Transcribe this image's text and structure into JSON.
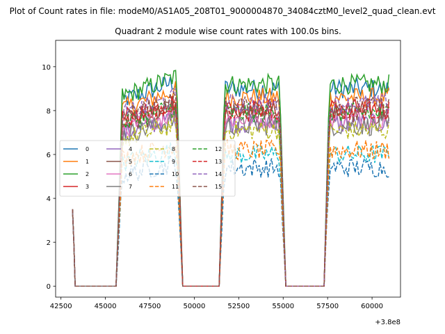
{
  "chart_data": {
    "type": "line",
    "suptitle": "Plot of Count rates in file: modeM0/AS1A05_208T01_9000004870_34084cztM0_level2_quad_clean.evt",
    "title": "Quadrant 2 module wise count rates with 100.0s bins.",
    "xlabel": "",
    "ylabel": "",
    "x_offset_label": "+3.8e8",
    "xlim": [
      42200,
      61600
    ],
    "ylim": [
      -0.5,
      11.2
    ],
    "xticks": [
      42500,
      45000,
      47500,
      50000,
      52500,
      55000,
      57500,
      60000
    ],
    "xtick_labels": [
      "42500",
      "45000",
      "47500",
      "50000",
      "52500",
      "55000",
      "57500",
      "60000"
    ],
    "yticks": [
      0,
      2,
      4,
      6,
      8,
      10
    ],
    "ytick_labels": [
      "0",
      "2",
      "4",
      "6",
      "8",
      "10"
    ],
    "segments": [
      {
        "start": 45650,
        "end": 49350,
        "rise": 300,
        "fall": 350,
        "shape": "rising"
      },
      {
        "start": 51450,
        "end": 55150,
        "rise": 250,
        "fall": 350,
        "shape": "flat"
      },
      {
        "start": 57350,
        "end": 61000,
        "rise": 250,
        "fall": 0,
        "shape": "flat"
      }
    ],
    "initial_spike": {
      "start": 43150,
      "end": 43300,
      "values": [
        3.5,
        2.0,
        0.0
      ]
    },
    "series": [
      {
        "name": "0",
        "level": 9.0,
        "color": "#1f77b4",
        "dash": "solid"
      },
      {
        "name": "1",
        "level": 8.6,
        "color": "#ff7f0e",
        "dash": "solid"
      },
      {
        "name": "2",
        "level": 9.2,
        "color": "#2ca02c",
        "dash": "solid"
      },
      {
        "name": "3",
        "level": 8.1,
        "color": "#d62728",
        "dash": "solid"
      },
      {
        "name": "4",
        "level": 7.4,
        "color": "#9467bd",
        "dash": "solid"
      },
      {
        "name": "5",
        "level": 7.8,
        "color": "#8c564b",
        "dash": "solid"
      },
      {
        "name": "6",
        "level": 7.6,
        "color": "#e377c2",
        "dash": "solid"
      },
      {
        "name": "7",
        "level": 7.3,
        "color": "#7f7f7f",
        "dash": "solid"
      },
      {
        "name": "8",
        "level": 7.1,
        "color": "#bcbd22",
        "dash": "dashed"
      },
      {
        "name": "9",
        "level": 6.0,
        "color": "#17becf",
        "dash": "dashed"
      },
      {
        "name": "10",
        "level": 5.4,
        "color": "#1f77b4",
        "dash": "dashed"
      },
      {
        "name": "11",
        "level": 6.2,
        "color": "#ff7f0e",
        "dash": "dashed"
      },
      {
        "name": "12",
        "level": 7.9,
        "color": "#2ca02c",
        "dash": "dashed"
      },
      {
        "name": "13",
        "level": 8.0,
        "color": "#d62728",
        "dash": "dashed"
      },
      {
        "name": "14",
        "level": 8.3,
        "color": "#9467bd",
        "dash": "dashed"
      },
      {
        "name": "15",
        "level": 8.2,
        "color": "#8c564b",
        "dash": "dashed"
      }
    ],
    "legend": {
      "placement": "center-left",
      "columns": 4
    }
  }
}
